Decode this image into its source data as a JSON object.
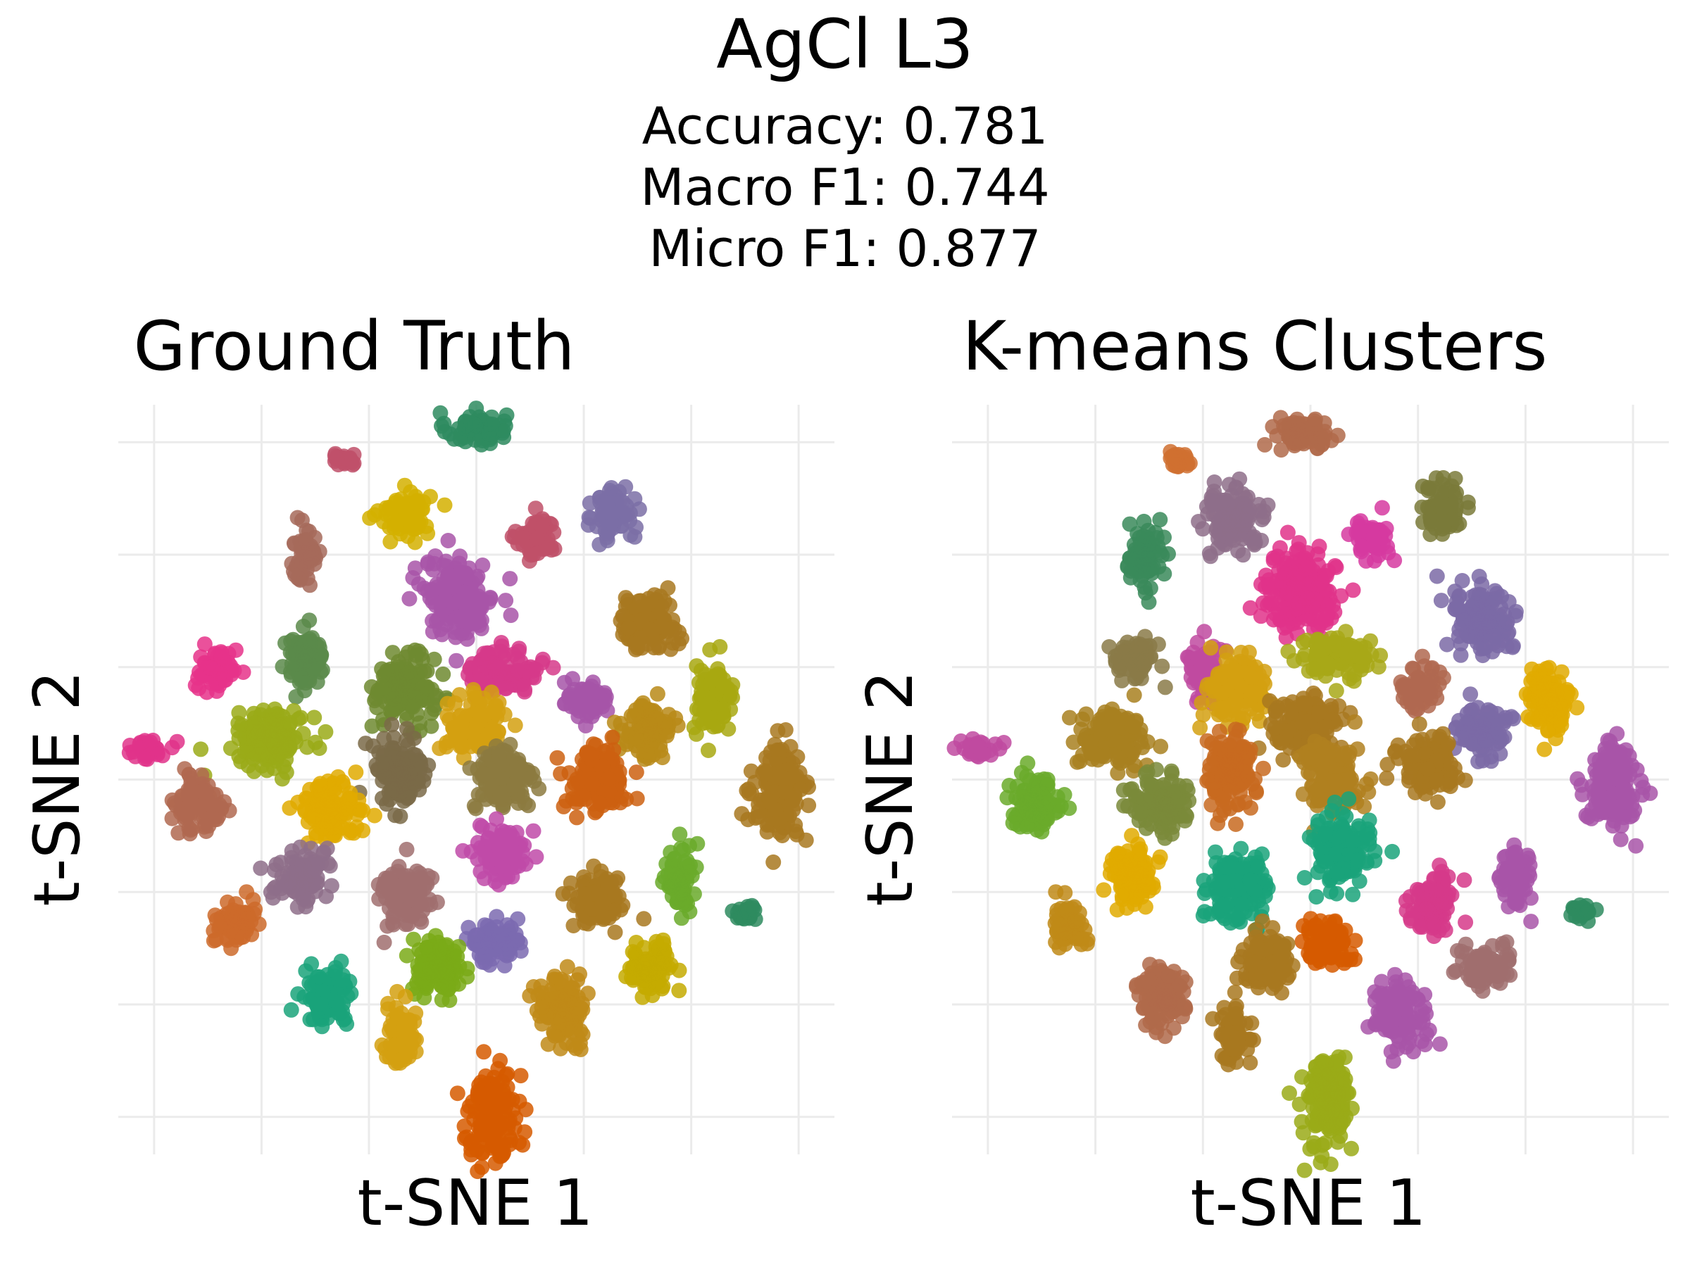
{
  "figure": {
    "title": "AgCl L3",
    "metrics": [
      "Accuracy: 0.781",
      "Macro F1: 0.744",
      "Micro F1: 0.877"
    ]
  },
  "chart_data": [
    {
      "type": "scatter",
      "title": "Ground Truth",
      "xlabel": "t-SNE 1",
      "ylabel": "t-SNE 2",
      "xlim": [
        -65,
        65
      ],
      "ylim": [
        -62,
        62
      ],
      "grid": true,
      "legend": "none",
      "clusters": [
        {
          "x": 0,
          "y": 58,
          "color": "#2e8b5f",
          "rx": 6,
          "ry": 3
        },
        {
          "x": -24,
          "y": 53,
          "color": "#c0506a",
          "rx": 3,
          "ry": 1.5
        },
        {
          "x": -13,
          "y": 44,
          "color": "#d4b000",
          "rx": 5,
          "ry": 4
        },
        {
          "x": 11,
          "y": 40,
          "color": "#c05068",
          "rx": 4,
          "ry": 4
        },
        {
          "x": 25,
          "y": 44,
          "color": "#7b6ea6",
          "rx": 4,
          "ry": 5
        },
        {
          "x": -31,
          "y": 37,
          "color": "#a66a5a",
          "rx": 3,
          "ry": 5
        },
        {
          "x": -3,
          "y": 30,
          "color": "#a855a8",
          "rx": 7,
          "ry": 7
        },
        {
          "x": 31,
          "y": 26,
          "color": "#a87820",
          "rx": 6,
          "ry": 5
        },
        {
          "x": 5,
          "y": 18,
          "color": "#d63a8a",
          "rx": 7,
          "ry": 4
        },
        {
          "x": -31,
          "y": 20,
          "color": "#5a8a4a",
          "rx": 4,
          "ry": 5
        },
        {
          "x": -47,
          "y": 18,
          "color": "#e6338a",
          "rx": 4,
          "ry": 4
        },
        {
          "x": -13,
          "y": 15,
          "color": "#6e8a30",
          "rx": 6,
          "ry": 6
        },
        {
          "x": 20,
          "y": 13,
          "color": "#a655a8",
          "rx": 4,
          "ry": 4
        },
        {
          "x": 0,
          "y": 9,
          "color": "#d4a010",
          "rx": 6,
          "ry": 5
        },
        {
          "x": 43,
          "y": 13,
          "color": "#a8a810",
          "rx": 4,
          "ry": 6
        },
        {
          "x": -37,
          "y": 7,
          "color": "#9aaa18",
          "rx": 7,
          "ry": 5
        },
        {
          "x": 31,
          "y": 8,
          "color": "#b88a18",
          "rx": 5,
          "ry": 5
        },
        {
          "x": -60,
          "y": 5,
          "color": "#e0338a",
          "rx": 4,
          "ry": 2
        },
        {
          "x": -14,
          "y": 1,
          "color": "#7a6a48",
          "rx": 5,
          "ry": 7
        },
        {
          "x": 5,
          "y": 0,
          "color": "#8c7a40",
          "rx": 6,
          "ry": 6
        },
        {
          "x": 22,
          "y": 0,
          "color": "#cc6010",
          "rx": 6,
          "ry": 6
        },
        {
          "x": 55,
          "y": -2,
          "color": "#a87820",
          "rx": 5,
          "ry": 8
        },
        {
          "x": -50,
          "y": -4,
          "color": "#b06850",
          "rx": 5,
          "ry": 5
        },
        {
          "x": -27,
          "y": -5,
          "color": "#e0aa00",
          "rx": 6,
          "ry": 5
        },
        {
          "x": 5,
          "y": -12,
          "color": "#c04aa8",
          "rx": 5,
          "ry": 5
        },
        {
          "x": -32,
          "y": -16,
          "color": "#8e6e8a",
          "rx": 5,
          "ry": 5
        },
        {
          "x": -13,
          "y": -19,
          "color": "#a06e6e",
          "rx": 5,
          "ry": 6
        },
        {
          "x": 37,
          "y": -16,
          "color": "#6aaa2a",
          "rx": 3,
          "ry": 6
        },
        {
          "x": 22,
          "y": -20,
          "color": "#a87820",
          "rx": 5,
          "ry": 5
        },
        {
          "x": -44,
          "y": -24,
          "color": "#cc6a2a",
          "rx": 4,
          "ry": 4
        },
        {
          "x": 49,
          "y": -22,
          "color": "#2e8b5f",
          "rx": 2,
          "ry": 1.5
        },
        {
          "x": 3,
          "y": -27,
          "color": "#7b6ab0",
          "rx": 5,
          "ry": 4
        },
        {
          "x": -7,
          "y": -31,
          "color": "#7aaa18",
          "rx": 5,
          "ry": 5
        },
        {
          "x": 32,
          "y": -31,
          "color": "#c4aa00",
          "rx": 5,
          "ry": 4
        },
        {
          "x": -27,
          "y": -36,
          "color": "#1aa37a",
          "rx": 5,
          "ry": 5
        },
        {
          "x": 16,
          "y": -38,
          "color": "#c08a18",
          "rx": 5,
          "ry": 6
        },
        {
          "x": -14,
          "y": -42,
          "color": "#d4a010",
          "rx": 3,
          "ry": 6
        },
        {
          "x": 3,
          "y": -55,
          "color": "#d65a00",
          "rx": 5,
          "ry": 8
        }
      ]
    },
    {
      "type": "scatter",
      "title": "K-means Clusters",
      "xlabel": "t-SNE 1",
      "ylabel": "t-SNE 2",
      "xlim": [
        -65,
        65
      ],
      "ylim": [
        -62,
        62
      ],
      "grid": true,
      "legend": "none",
      "clusters": [
        {
          "x": -1,
          "y": 57,
          "color": "#b06a4a",
          "rx": 6,
          "ry": 3
        },
        {
          "x": -24,
          "y": 53,
          "color": "#d07030",
          "rx": 3,
          "ry": 1.5
        },
        {
          "x": -14,
          "y": 43,
          "color": "#8e6e8a",
          "rx": 6,
          "ry": 5
        },
        {
          "x": 11,
          "y": 40,
          "color": "#d63aa0",
          "rx": 4,
          "ry": 4
        },
        {
          "x": 24,
          "y": 45,
          "color": "#7a7a3a",
          "rx": 4,
          "ry": 5
        },
        {
          "x": -30,
          "y": 37,
          "color": "#3a8a5a",
          "rx": 4,
          "ry": 5
        },
        {
          "x": -2,
          "y": 31,
          "color": "#e0338a",
          "rx": 7,
          "ry": 7
        },
        {
          "x": 31,
          "y": 27,
          "color": "#7b6aa6",
          "rx": 6,
          "ry": 6
        },
        {
          "x": 5,
          "y": 20,
          "color": "#a8a818",
          "rx": 7,
          "ry": 4
        },
        {
          "x": -32,
          "y": 20,
          "color": "#8a7a48",
          "rx": 4,
          "ry": 4
        },
        {
          "x": -19,
          "y": 18,
          "color": "#c04aa0",
          "rx": 4,
          "ry": 5
        },
        {
          "x": -13,
          "y": 15,
          "color": "#d4a010",
          "rx": 6,
          "ry": 6
        },
        {
          "x": 20,
          "y": 15,
          "color": "#b06850",
          "rx": 4,
          "ry": 4
        },
        {
          "x": -1,
          "y": 9,
          "color": "#a87820",
          "rx": 7,
          "ry": 5
        },
        {
          "x": 43,
          "y": 13,
          "color": "#e0aa00",
          "rx": 4,
          "ry": 6
        },
        {
          "x": -36,
          "y": 7,
          "color": "#a88020",
          "rx": 7,
          "ry": 5
        },
        {
          "x": 31,
          "y": 8,
          "color": "#7b6aa6",
          "rx": 5,
          "ry": 5
        },
        {
          "x": -60,
          "y": 5,
          "color": "#c04aa0",
          "rx": 4,
          "ry": 2
        },
        {
          "x": -15,
          "y": 1,
          "color": "#c86a20",
          "rx": 5,
          "ry": 7
        },
        {
          "x": 4,
          "y": 0,
          "color": "#b08020",
          "rx": 6,
          "ry": 6
        },
        {
          "x": 21,
          "y": 2,
          "color": "#a87820",
          "rx": 6,
          "ry": 5
        },
        {
          "x": 55,
          "y": -1,
          "color": "#a855a8",
          "rx": 5,
          "ry": 8
        },
        {
          "x": -50,
          "y": -4,
          "color": "#6aaa2a",
          "rx": 5,
          "ry": 5
        },
        {
          "x": -27,
          "y": -4,
          "color": "#7a8a3a",
          "rx": 6,
          "ry": 5
        },
        {
          "x": 5,
          "y": -12,
          "color": "#1aa37a",
          "rx": 6,
          "ry": 6
        },
        {
          "x": -32,
          "y": -16,
          "color": "#e0aa00",
          "rx": 5,
          "ry": 5
        },
        {
          "x": -13,
          "y": -18,
          "color": "#1aa37a",
          "rx": 6,
          "ry": 6
        },
        {
          "x": 37,
          "y": -16,
          "color": "#a855a8",
          "rx": 3,
          "ry": 6
        },
        {
          "x": 22,
          "y": -20,
          "color": "#d63a8a",
          "rx": 5,
          "ry": 5
        },
        {
          "x": -44,
          "y": -24,
          "color": "#c08a18",
          "rx": 4,
          "ry": 4
        },
        {
          "x": 49,
          "y": -22,
          "color": "#2e8b5f",
          "rx": 2,
          "ry": 1.5
        },
        {
          "x": 3,
          "y": -27,
          "color": "#d65a00",
          "rx": 5,
          "ry": 4
        },
        {
          "x": -8,
          "y": -30,
          "color": "#a87820",
          "rx": 5,
          "ry": 5
        },
        {
          "x": 32,
          "y": -31,
          "color": "#a06e6e",
          "rx": 5,
          "ry": 4
        },
        {
          "x": -27,
          "y": -36,
          "color": "#b06a4a",
          "rx": 5,
          "ry": 5
        },
        {
          "x": 16,
          "y": -39,
          "color": "#a855a8",
          "rx": 5,
          "ry": 6
        },
        {
          "x": -14,
          "y": -42,
          "color": "#a87820",
          "rx": 3,
          "ry": 6
        },
        {
          "x": 3,
          "y": -53,
          "color": "#9aaa18",
          "rx": 5,
          "ry": 8
        }
      ]
    }
  ]
}
